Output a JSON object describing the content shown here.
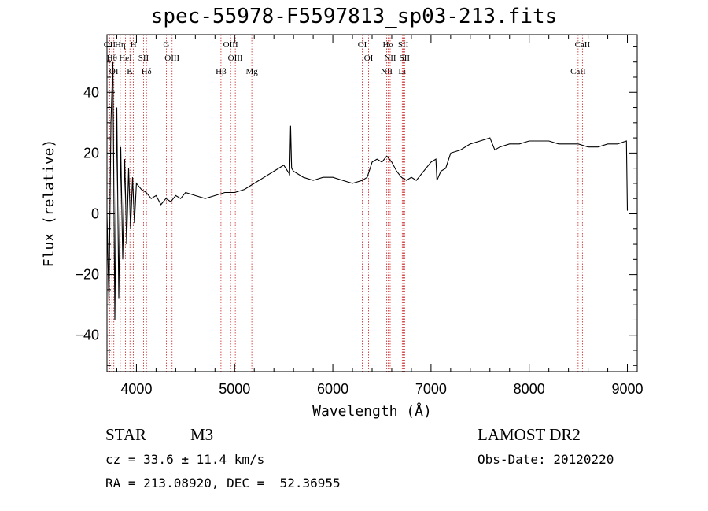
{
  "chart_data": {
    "type": "line",
    "title": "spec-55978-F5597813_sp03-213.fits",
    "xlabel": "Wavelength (Å)",
    "ylabel": "Flux (relative)",
    "xlim": [
      3700,
      9100
    ],
    "ylim": [
      -52,
      59
    ],
    "xticks": [
      4000,
      5000,
      6000,
      7000,
      8000,
      9000
    ],
    "yticks": [
      -40,
      -20,
      0,
      20,
      40
    ],
    "grid": false,
    "series": [
      {
        "color": "#000000",
        "x": [
          3700,
          3720,
          3740,
          3760,
          3780,
          3800,
          3820,
          3840,
          3860,
          3880,
          3900,
          3920,
          3940,
          3960,
          3980,
          4000,
          4050,
          4100,
          4150,
          4200,
          4250,
          4300,
          4350,
          4400,
          4450,
          4500,
          4600,
          4700,
          4800,
          4900,
          5000,
          5100,
          5200,
          5300,
          5400,
          5500,
          5560,
          5570,
          5580,
          5600,
          5650,
          5700,
          5800,
          5900,
          6000,
          6100,
          6200,
          6300,
          6350,
          6400,
          6450,
          6500,
          6550,
          6600,
          6650,
          6700,
          6750,
          6800,
          6850,
          6900,
          6950,
          7000,
          7050,
          7060,
          7100,
          7150,
          7200,
          7300,
          7400,
          7500,
          7600,
          7650,
          7700,
          7800,
          7900,
          8000,
          8100,
          8200,
          8300,
          8400,
          8500,
          8600,
          8700,
          8800,
          8900,
          8990,
          9000
        ],
        "y": [
          0,
          -30,
          30,
          50,
          -35,
          35,
          -28,
          22,
          -15,
          18,
          -10,
          15,
          -5,
          12,
          -3,
          10,
          8,
          7,
          5,
          6,
          3,
          5,
          4,
          6,
          5,
          7,
          6,
          5,
          6,
          7,
          7,
          8,
          10,
          12,
          14,
          16,
          13,
          29,
          15,
          14,
          13,
          12,
          11,
          12,
          12,
          11,
          10,
          11,
          12,
          17,
          18,
          17,
          19,
          17,
          14,
          12,
          11,
          12,
          11,
          13,
          15,
          17,
          18,
          11,
          14,
          15,
          20,
          21,
          23,
          24,
          25,
          21,
          22,
          23,
          23,
          24,
          24,
          24,
          23,
          23,
          23,
          22,
          22,
          23,
          23,
          24,
          1
        ]
      }
    ],
    "lines": [
      {
        "wavelength": 3727,
        "labels": [
          "OII"
        ]
      },
      {
        "wavelength": 3750,
        "labels": [
          "Hθ"
        ]
      },
      {
        "wavelength": 3770,
        "labels": [
          "OI"
        ]
      },
      {
        "wavelength": 3835,
        "labels": [
          "Hη"
        ]
      },
      {
        "wavelength": 3889,
        "labels": [
          "HeI"
        ]
      },
      {
        "wavelength": 3934,
        "labels": [
          "K"
        ]
      },
      {
        "wavelength": 3969,
        "labels": [
          "H"
        ]
      },
      {
        "wavelength": 4072,
        "labels": [
          "SII"
        ]
      },
      {
        "wavelength": 4102,
        "labels": [
          "Hδ"
        ]
      },
      {
        "wavelength": 4304,
        "labels": [
          "G"
        ]
      },
      {
        "wavelength": 4363,
        "labels": [
          "OIII"
        ]
      },
      {
        "wavelength": 4861,
        "labels": [
          "Hβ"
        ]
      },
      {
        "wavelength": 4959,
        "labels": [
          "OIII"
        ]
      },
      {
        "wavelength": 5007,
        "labels": [
          "OIII"
        ]
      },
      {
        "wavelength": 5175,
        "labels": [
          "Mg"
        ]
      },
      {
        "wavelength": 6300,
        "labels": [
          "OI"
        ]
      },
      {
        "wavelength": 6364,
        "labels": [
          "OI"
        ]
      },
      {
        "wavelength": 6548,
        "labels": [
          "NII"
        ]
      },
      {
        "wavelength": 6563,
        "labels": [
          "Hα"
        ]
      },
      {
        "wavelength": 6584,
        "labels": [
          "NII"
        ]
      },
      {
        "wavelength": 6707,
        "labels": [
          "Li"
        ]
      },
      {
        "wavelength": 6717,
        "labels": [
          "SII"
        ]
      },
      {
        "wavelength": 6731,
        "labels": [
          "SII"
        ]
      },
      {
        "wavelength": 8498,
        "labels": [
          "CaII"
        ]
      },
      {
        "wavelength": 8542,
        "labels": [
          "CaII"
        ]
      }
    ],
    "colors": {
      "axes": "#000000",
      "lines": "#cc2222",
      "data": "#000000"
    }
  },
  "info": {
    "object_type": "STAR",
    "subclass": "M3",
    "cz": "cz = 33.6 ± 11.4 km/s",
    "radec": "RA = 213.08920, DEC =  52.36955",
    "survey": "LAMOST DR2",
    "obs_date": "Obs-Date: 20120220"
  }
}
